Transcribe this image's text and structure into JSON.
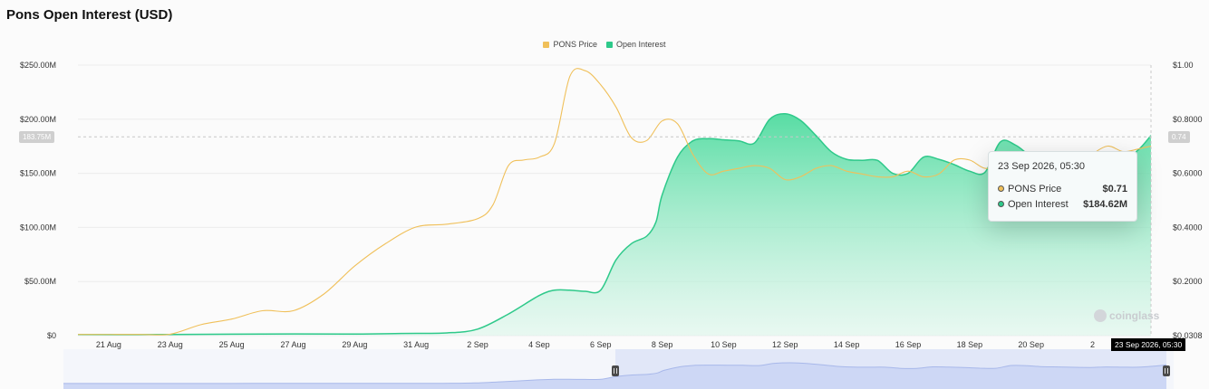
{
  "title": "Pons Open Interest (USD)",
  "colors": {
    "price": "#f0c05a",
    "oi": "#2ec98a"
  },
  "legend": [
    "PONS Price",
    "Open Interest"
  ],
  "chart_data": {
    "type": "area",
    "title": "Pons Open Interest (USD)",
    "x_ticks": [
      "21 Aug",
      "23 Aug",
      "25 Aug",
      "27 Aug",
      "29 Aug",
      "31 Aug",
      "2 Sep",
      "4 Sep",
      "6 Sep",
      "8 Sep",
      "10 Sep",
      "12 Sep",
      "14 Sep",
      "16 Sep",
      "18 Sep",
      "20 Sep",
      "2"
    ],
    "y_left_ticks": [
      "$0",
      "$50.00M",
      "$100.00M",
      "$150.00M",
      "$200.00M",
      "$250.00M"
    ],
    "y_right_ticks": [
      "$0.0308",
      "$0.2000",
      "$0.4000",
      "$0.6000",
      "$0.8000",
      "$1.00"
    ],
    "y_left_range": [
      0,
      250
    ],
    "y_right_range": [
      0.0308,
      1.0
    ],
    "x_range_days": [
      0,
      34.9
    ],
    "series": [
      {
        "name": "Open Interest",
        "axis": "left",
        "unit": "$M",
        "x": [
          0,
          3,
          6,
          9,
          10.5,
          12,
          13,
          14,
          15,
          15.5,
          16,
          16.5,
          17,
          17.5,
          18,
          18.5,
          18.8,
          19,
          19.5,
          20,
          20.5,
          21,
          21.5,
          22,
          22.5,
          23,
          23.5,
          24,
          24.5,
          25,
          25.5,
          26,
          26.5,
          27,
          27.5,
          28,
          28.5,
          29,
          29.5,
          30,
          30.5,
          31,
          31.5,
          32,
          32.5,
          33,
          33.5,
          34,
          34.5,
          34.9
        ],
        "values": [
          1,
          1,
          1.5,
          1.5,
          2,
          2.5,
          6,
          20,
          37,
          42,
          42,
          41,
          42,
          70,
          85,
          92,
          105,
          130,
          165,
          180,
          182,
          181,
          180,
          178,
          200,
          205,
          199,
          185,
          170,
          163,
          162,
          162,
          150,
          150,
          165,
          163,
          158,
          152,
          151,
          179,
          176,
          166,
          164,
          161,
          159,
          164,
          162,
          162,
          172,
          185
        ]
      },
      {
        "name": "PONS Price",
        "axis": "right",
        "unit": "$",
        "x": [
          0,
          2,
          3,
          4,
          5,
          6,
          7,
          8,
          9,
          10,
          11,
          12,
          13,
          13.5,
          14,
          14.5,
          15,
          15.5,
          16,
          16.5,
          17,
          17.5,
          18,
          18.5,
          19,
          19.5,
          20,
          20.5,
          21,
          21.5,
          22,
          22.5,
          23,
          23.5,
          24,
          24.5,
          25,
          25.5,
          26,
          26.5,
          27,
          27.5,
          28,
          28.5,
          29,
          29.5,
          30,
          30.5,
          31,
          31.5,
          32,
          32.5,
          33,
          33.5,
          34,
          34.5,
          34.9
        ],
        "values": [
          0.035,
          0.035,
          0.036,
          0.07,
          0.09,
          0.12,
          0.12,
          0.18,
          0.28,
          0.36,
          0.42,
          0.43,
          0.45,
          0.5,
          0.64,
          0.66,
          0.67,
          0.72,
          0.96,
          0.98,
          0.93,
          0.85,
          0.74,
          0.73,
          0.8,
          0.79,
          0.68,
          0.61,
          0.62,
          0.63,
          0.64,
          0.63,
          0.59,
          0.6,
          0.63,
          0.64,
          0.62,
          0.61,
          0.6,
          0.6,
          0.62,
          0.6,
          0.61,
          0.66,
          0.66,
          0.63,
          0.64,
          0.62,
          0.63,
          0.61,
          0.6,
          0.62,
          0.68,
          0.71,
          0.69,
          0.7,
          0.71
        ]
      }
    ],
    "crosshair": {
      "left_value_label": "183.75M",
      "right_value_label": "0.74"
    },
    "grid": true,
    "legend_position": "top-center"
  },
  "tooltip": {
    "date": "23 Sep 2026, 05:30",
    "rows": [
      {
        "label": "PONS Price",
        "value": "$0.71"
      },
      {
        "label": "Open Interest",
        "value": "$184.62M"
      }
    ]
  },
  "date_tag": "23 Sep 2026, 05:30",
  "watermark": "coinglass"
}
